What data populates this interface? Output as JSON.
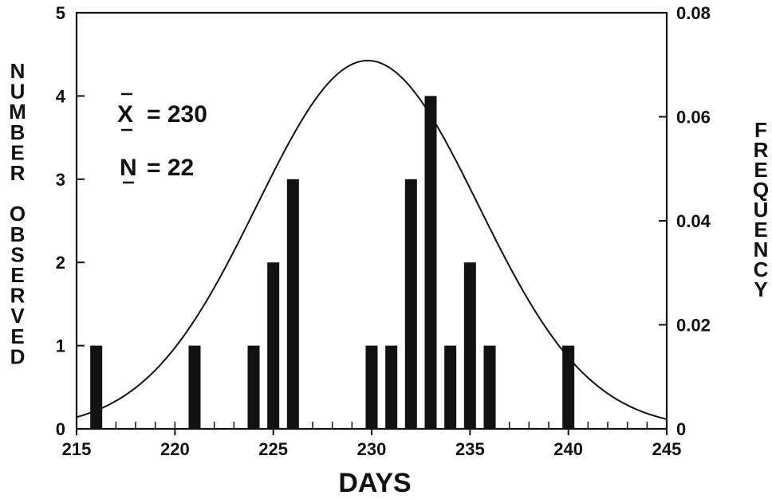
{
  "chart_data": {
    "type": "bar",
    "xlabel": "DAYS",
    "ylabel": "NUMBER OBSERVED",
    "y2label": "FREQUENCY",
    "xlim": [
      215,
      245
    ],
    "ylim": [
      0,
      5
    ],
    "y2lim": [
      0,
      0.08
    ],
    "xticks": [
      215,
      220,
      225,
      230,
      235,
      240,
      245
    ],
    "yticks": [
      0,
      1,
      2,
      3,
      4,
      5
    ],
    "y2ticks": [
      "0",
      "0.02",
      "0.04",
      "0.06",
      "0.08"
    ],
    "x": [
      216,
      221,
      224,
      225,
      226,
      230,
      231,
      232,
      233,
      234,
      235,
      236,
      240
    ],
    "values": [
      1,
      1,
      1,
      2,
      3,
      1,
      1,
      3,
      4,
      1,
      2,
      1,
      1
    ],
    "curve": {
      "type": "normal",
      "mean": 229.8,
      "peak_frequency": 0.0708,
      "x_range": [
        215,
        245
      ]
    },
    "annotations": {
      "mean_symbol": "X",
      "mean_eq": "= 230",
      "n_symbol": "N",
      "n_eq": "= 22"
    },
    "grid": false
  }
}
